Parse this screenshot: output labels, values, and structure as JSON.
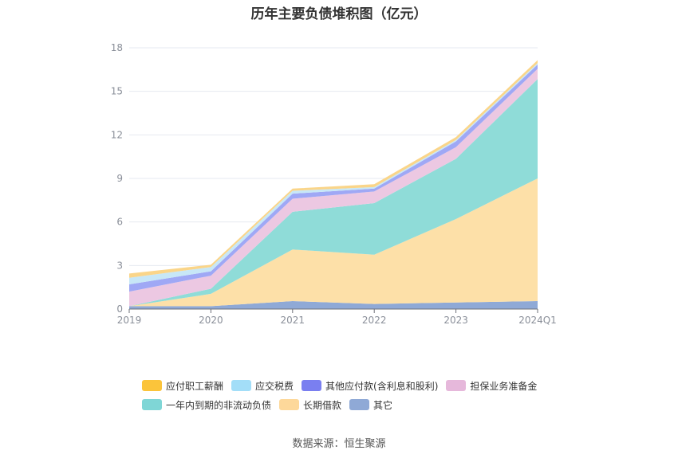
{
  "chart_data": {
    "type": "area",
    "title": "历年主要负债堆积图（亿元）",
    "categories": [
      "2019",
      "2020",
      "2021",
      "2022",
      "2023",
      "2024Q1"
    ],
    "ylim": [
      0,
      18
    ],
    "yticks": [
      0,
      3,
      6,
      9,
      12,
      15,
      18
    ],
    "grid": true,
    "legend_position": "bottom",
    "series": [
      {
        "name": "其它",
        "color": "#8fa9d6",
        "values": [
          0.2,
          0.2,
          0.55,
          0.35,
          0.45,
          0.55
        ]
      },
      {
        "name": "长期借款",
        "color": "#fde0a8",
        "values": [
          0.0,
          0.85,
          3.55,
          3.4,
          5.75,
          8.45
        ]
      },
      {
        "name": "一年内到期的非流动负债",
        "color": "#8fdcd8",
        "values": [
          0.0,
          0.35,
          2.6,
          3.55,
          4.15,
          6.85
        ]
      },
      {
        "name": "担保业务准备金",
        "color": "#ecc8e2",
        "values": [
          1.0,
          0.9,
          0.9,
          0.8,
          0.8,
          0.7
        ]
      },
      {
        "name": "其他应付款(含利息和股利)",
        "color": "#9fa8f5",
        "values": [
          0.5,
          0.3,
          0.35,
          0.2,
          0.4,
          0.3
        ]
      },
      {
        "name": "应交税费",
        "color": "#c7e7f7",
        "values": [
          0.45,
          0.3,
          0.2,
          0.1,
          0.1,
          0.1
        ]
      },
      {
        "name": "应付职工薪酬",
        "color": "#fad589",
        "values": [
          0.3,
          0.15,
          0.15,
          0.2,
          0.2,
          0.2
        ]
      }
    ],
    "legend_order": [
      "应付职工薪酬",
      "应交税费",
      "其他应付款(含利息和股利)",
      "担保业务准备金",
      "一年内到期的非流动负债",
      "长期借款",
      "其它"
    ],
    "legend_colors": {
      "应付职工薪酬": "#fbc43b",
      "应交税费": "#a3def8",
      "其他应付款(含利息和股利)": "#7a7ff0",
      "担保业务准备金": "#e6b8db",
      "一年内到期的非流动负债": "#7fd6d6",
      "长期借款": "#fdd89a",
      "其它": "#8fa9d6"
    }
  },
  "source": "数据来源：恒生聚源"
}
